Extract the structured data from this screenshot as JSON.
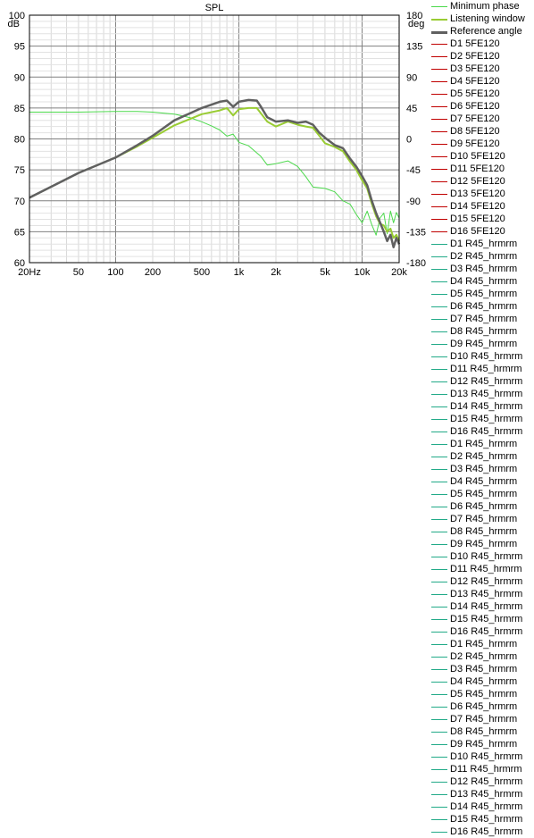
{
  "chart_data": {
    "type": "line",
    "title": "SPL",
    "ylabel_left": "dB",
    "ylabel_right": "deg",
    "xscale": "log",
    "xlim": [
      20,
      20000
    ],
    "ylim": [
      60,
      100
    ],
    "ylim_right": [
      -180,
      180
    ],
    "grid": true,
    "legend_position": "right",
    "x_ticks": [
      "20Hz",
      "50",
      "100",
      "200",
      "500",
      "1k",
      "2k",
      "5k",
      "10k",
      "20k"
    ],
    "y_ticks": [
      "60",
      "65",
      "70",
      "75",
      "80",
      "85",
      "90",
      "95",
      "100"
    ],
    "y_ticks_right": [
      "-180",
      "-135",
      "-90",
      "-45",
      "0",
      "45",
      "90",
      "135",
      "180"
    ],
    "series": [
      {
        "name": "Minimum phase",
        "color": "#4cd94c",
        "axis": "right",
        "points": [
          [
            20,
            39
          ],
          [
            50,
            39
          ],
          [
            100,
            40
          ],
          [
            150,
            40
          ],
          [
            200,
            39
          ],
          [
            300,
            36
          ],
          [
            400,
            31
          ],
          [
            500,
            25
          ],
          [
            600,
            19
          ],
          [
            700,
            13
          ],
          [
            800,
            4
          ],
          [
            900,
            7
          ],
          [
            1000,
            -5
          ],
          [
            1200,
            -10
          ],
          [
            1500,
            -25
          ],
          [
            1700,
            -38
          ],
          [
            2000,
            -36
          ],
          [
            2500,
            -32
          ],
          [
            3000,
            -40
          ],
          [
            3500,
            -55
          ],
          [
            4000,
            -70
          ],
          [
            5000,
            -72
          ],
          [
            6000,
            -77
          ],
          [
            7000,
            -90
          ],
          [
            8000,
            -95
          ],
          [
            9000,
            -110
          ],
          [
            10000,
            -122
          ],
          [
            11000,
            -105
          ],
          [
            12000,
            -125
          ],
          [
            13000,
            -140
          ],
          [
            14000,
            -115
          ],
          [
            15000,
            -108
          ],
          [
            16000,
            -138
          ],
          [
            17000,
            -105
          ],
          [
            18000,
            -122
          ],
          [
            19000,
            -107
          ],
          [
            20000,
            -115
          ]
        ]
      },
      {
        "name": "Listening window",
        "color": "#99cc33",
        "axis": "left",
        "points": [
          [
            20,
            70.5
          ],
          [
            50,
            74.5
          ],
          [
            100,
            77
          ],
          [
            150,
            78.8
          ],
          [
            200,
            80.2
          ],
          [
            300,
            82.2
          ],
          [
            500,
            84
          ],
          [
            700,
            84.6
          ],
          [
            800,
            85.0
          ],
          [
            900,
            83.8
          ],
          [
            1000,
            84.8
          ],
          [
            1200,
            85.0
          ],
          [
            1400,
            85.0
          ],
          [
            1500,
            84.2
          ],
          [
            1700,
            82.8
          ],
          [
            2000,
            82
          ],
          [
            2500,
            82.8
          ],
          [
            3000,
            82.3
          ],
          [
            3500,
            82.0
          ],
          [
            4000,
            81.8
          ],
          [
            4500,
            80.5
          ],
          [
            5000,
            79.3
          ],
          [
            6000,
            78.7
          ],
          [
            7000,
            78.0
          ],
          [
            8000,
            76.3
          ],
          [
            9000,
            75.0
          ],
          [
            10000,
            73.3
          ],
          [
            11000,
            72.0
          ],
          [
            12000,
            69.5
          ],
          [
            13000,
            67.5
          ],
          [
            14000,
            66.3
          ],
          [
            15000,
            66
          ],
          [
            16000,
            65
          ],
          [
            17000,
            65.5
          ],
          [
            18000,
            64
          ],
          [
            19000,
            64.5
          ],
          [
            20000,
            63.5
          ]
        ]
      },
      {
        "name": "Reference angle",
        "color": "#606060",
        "axis": "left",
        "points": [
          [
            20,
            70.5
          ],
          [
            50,
            74.5
          ],
          [
            100,
            77
          ],
          [
            150,
            79.0
          ],
          [
            200,
            80.5
          ],
          [
            300,
            83
          ],
          [
            500,
            85
          ],
          [
            700,
            86
          ],
          [
            800,
            86.2
          ],
          [
            900,
            85.2
          ],
          [
            1000,
            86.0
          ],
          [
            1200,
            86.3
          ],
          [
            1400,
            86.2
          ],
          [
            1500,
            85.3
          ],
          [
            1700,
            83.5
          ],
          [
            2000,
            82.8
          ],
          [
            2500,
            83.0
          ],
          [
            3000,
            82.6
          ],
          [
            3500,
            82.8
          ],
          [
            4000,
            82.3
          ],
          [
            4500,
            81
          ],
          [
            5000,
            80.2
          ],
          [
            6000,
            79.0
          ],
          [
            7000,
            78.5
          ],
          [
            8000,
            76.8
          ],
          [
            9000,
            75.5
          ],
          [
            10000,
            74.0
          ],
          [
            11000,
            72.5
          ],
          [
            12000,
            70
          ],
          [
            13000,
            68
          ],
          [
            14000,
            66.5
          ],
          [
            15000,
            65
          ],
          [
            16000,
            63.5
          ],
          [
            17000,
            64.5
          ],
          [
            18000,
            62.5
          ],
          [
            19000,
            64
          ],
          [
            20000,
            63
          ]
        ]
      }
    ]
  },
  "legend_entries": [
    {
      "label": "Minimum phase",
      "color": "#4cd94c",
      "width": 1
    },
    {
      "label": "Listening window",
      "color": "#99cc33",
      "width": 2
    },
    {
      "label": "Reference angle",
      "color": "#606060",
      "width": 3
    },
    {
      "label": "D1 5FE120",
      "color": "#c00000",
      "width": 1
    },
    {
      "label": "D2 5FE120",
      "color": "#c00000",
      "width": 1
    },
    {
      "label": "D3 5FE120",
      "color": "#c00000",
      "width": 1
    },
    {
      "label": "D4 5FE120",
      "color": "#c00000",
      "width": 1
    },
    {
      "label": "D5 5FE120",
      "color": "#c00000",
      "width": 1
    },
    {
      "label": "D6 5FE120",
      "color": "#c00000",
      "width": 1
    },
    {
      "label": "D7 5FE120",
      "color": "#c00000",
      "width": 1
    },
    {
      "label": "D8 5FE120",
      "color": "#c00000",
      "width": 1
    },
    {
      "label": "D9 5FE120",
      "color": "#c00000",
      "width": 1
    },
    {
      "label": "D10 5FE120",
      "color": "#c00000",
      "width": 1
    },
    {
      "label": "D11 5FE120",
      "color": "#c00000",
      "width": 1
    },
    {
      "label": "D12 5FE120",
      "color": "#c00000",
      "width": 1
    },
    {
      "label": "D13 5FE120",
      "color": "#c00000",
      "width": 1
    },
    {
      "label": "D14 5FE120",
      "color": "#c00000",
      "width": 1
    },
    {
      "label": "D15 5FE120",
      "color": "#c00000",
      "width": 1
    },
    {
      "label": "D16 5FE120",
      "color": "#c00000",
      "width": 1
    },
    {
      "label": "D1 R45_hrmrm",
      "color": "#22aa88",
      "width": 1
    },
    {
      "label": "D2 R45_hrmrm",
      "color": "#22aa88",
      "width": 1
    },
    {
      "label": "D3 R45_hrmrm",
      "color": "#22aa88",
      "width": 1
    },
    {
      "label": "D4 R45_hrmrm",
      "color": "#22aa88",
      "width": 1
    },
    {
      "label": "D5 R45_hrmrm",
      "color": "#22aa88",
      "width": 1
    },
    {
      "label": "D6 R45_hrmrm",
      "color": "#22aa88",
      "width": 1
    },
    {
      "label": "D7 R45_hrmrm",
      "color": "#22aa88",
      "width": 1
    },
    {
      "label": "D8 R45_hrmrm",
      "color": "#22aa88",
      "width": 1
    },
    {
      "label": "D9 R45_hrmrm",
      "color": "#22aa88",
      "width": 1
    },
    {
      "label": "D10 R45_hrmrm",
      "color": "#22aa88",
      "width": 1
    },
    {
      "label": "D11 R45_hrmrm",
      "color": "#22aa88",
      "width": 1
    },
    {
      "label": "D12 R45_hrmrm",
      "color": "#22aa88",
      "width": 1
    },
    {
      "label": "D13 R45_hrmrm",
      "color": "#22aa88",
      "width": 1
    },
    {
      "label": "D14 R45_hrmrm",
      "color": "#22aa88",
      "width": 1
    },
    {
      "label": "D15 R45_hrmrm",
      "color": "#22aa88",
      "width": 1
    },
    {
      "label": "D16 R45_hrmrm",
      "color": "#22aa88",
      "width": 1
    },
    {
      "label": "D1 R45_hrmrm",
      "color": "#22aa88",
      "width": 1
    },
    {
      "label": "D2 R45_hrmrm",
      "color": "#22aa88",
      "width": 1
    },
    {
      "label": "D3 R45_hrmrm",
      "color": "#22aa88",
      "width": 1
    },
    {
      "label": "D4 R45_hrmrm",
      "color": "#22aa88",
      "width": 1
    },
    {
      "label": "D5 R45_hrmrm",
      "color": "#22aa88",
      "width": 1
    },
    {
      "label": "D6 R45_hrmrm",
      "color": "#22aa88",
      "width": 1
    },
    {
      "label": "D7 R45_hrmrm",
      "color": "#22aa88",
      "width": 1
    },
    {
      "label": "D8 R45_hrmrm",
      "color": "#22aa88",
      "width": 1
    },
    {
      "label": "D9 R45_hrmrm",
      "color": "#22aa88",
      "width": 1
    },
    {
      "label": "D10 R45_hrmrm",
      "color": "#22aa88",
      "width": 1
    },
    {
      "label": "D11 R45_hrmrm",
      "color": "#22aa88",
      "width": 1
    },
    {
      "label": "D12 R45_hrmrm",
      "color": "#22aa88",
      "width": 1
    },
    {
      "label": "D13 R45_hrmrm",
      "color": "#22aa88",
      "width": 1
    },
    {
      "label": "D14 R45_hrmrm",
      "color": "#22aa88",
      "width": 1
    },
    {
      "label": "D15 R45_hrmrm",
      "color": "#22aa88",
      "width": 1
    },
    {
      "label": "D16 R45_hrmrm",
      "color": "#22aa88",
      "width": 1
    },
    {
      "label": "D1 R45_hrmrm",
      "color": "#22aa88",
      "width": 1
    },
    {
      "label": "D2 R45_hrmrm",
      "color": "#22aa88",
      "width": 1
    },
    {
      "label": "D3 R45_hrmrm",
      "color": "#22aa88",
      "width": 1
    },
    {
      "label": "D4 R45_hrmrm",
      "color": "#22aa88",
      "width": 1
    },
    {
      "label": "D5 R45_hrmrm",
      "color": "#22aa88",
      "width": 1
    },
    {
      "label": "D6 R45_hrmrm",
      "color": "#22aa88",
      "width": 1
    },
    {
      "label": "D7 R45_hrmrm",
      "color": "#22aa88",
      "width": 1
    },
    {
      "label": "D8 R45_hrmrm",
      "color": "#22aa88",
      "width": 1
    },
    {
      "label": "D9 R45_hrmrm",
      "color": "#22aa88",
      "width": 1
    },
    {
      "label": "D10 R45_hrmrm",
      "color": "#22aa88",
      "width": 1
    },
    {
      "label": "D11 R45_hrmrm",
      "color": "#22aa88",
      "width": 1
    },
    {
      "label": "D12 R45_hrmrm",
      "color": "#22aa88",
      "width": 1
    },
    {
      "label": "D13 R45_hrmrm",
      "color": "#22aa88",
      "width": 1
    },
    {
      "label": "D14 R45_hrmrm",
      "color": "#22aa88",
      "width": 1
    },
    {
      "label": "D15 R45_hrmrm",
      "color": "#22aa88",
      "width": 1
    },
    {
      "label": "D16 R45_hrmrm",
      "color": "#22aa88",
      "width": 1
    }
  ]
}
